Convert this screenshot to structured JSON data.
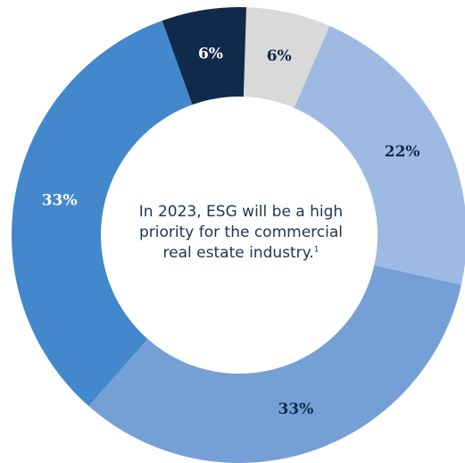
{
  "chart_data": {
    "type": "pie",
    "donut": true,
    "start_offset_percent": 0.5,
    "categories": [
      "",
      "",
      "",
      "",
      ""
    ],
    "values": [
      6,
      22,
      33,
      33,
      6
    ],
    "labels": [
      "6%",
      "22%",
      "33%",
      "33%",
      "6%"
    ],
    "colors": [
      "#d9d9d9",
      "#9fbae2",
      "#75a0d6",
      "#4388cc",
      "#0f2a4a"
    ],
    "label_colors": [
      "#0f2a4a",
      "#0f2a4a",
      "#0f2a4a",
      "#ffffff",
      "#ffffff"
    ],
    "center_text": "In 2023, ESG will be a high\npriority for the commercial\nreal estate industry.",
    "center_footnote": "1",
    "legend": "none"
  }
}
